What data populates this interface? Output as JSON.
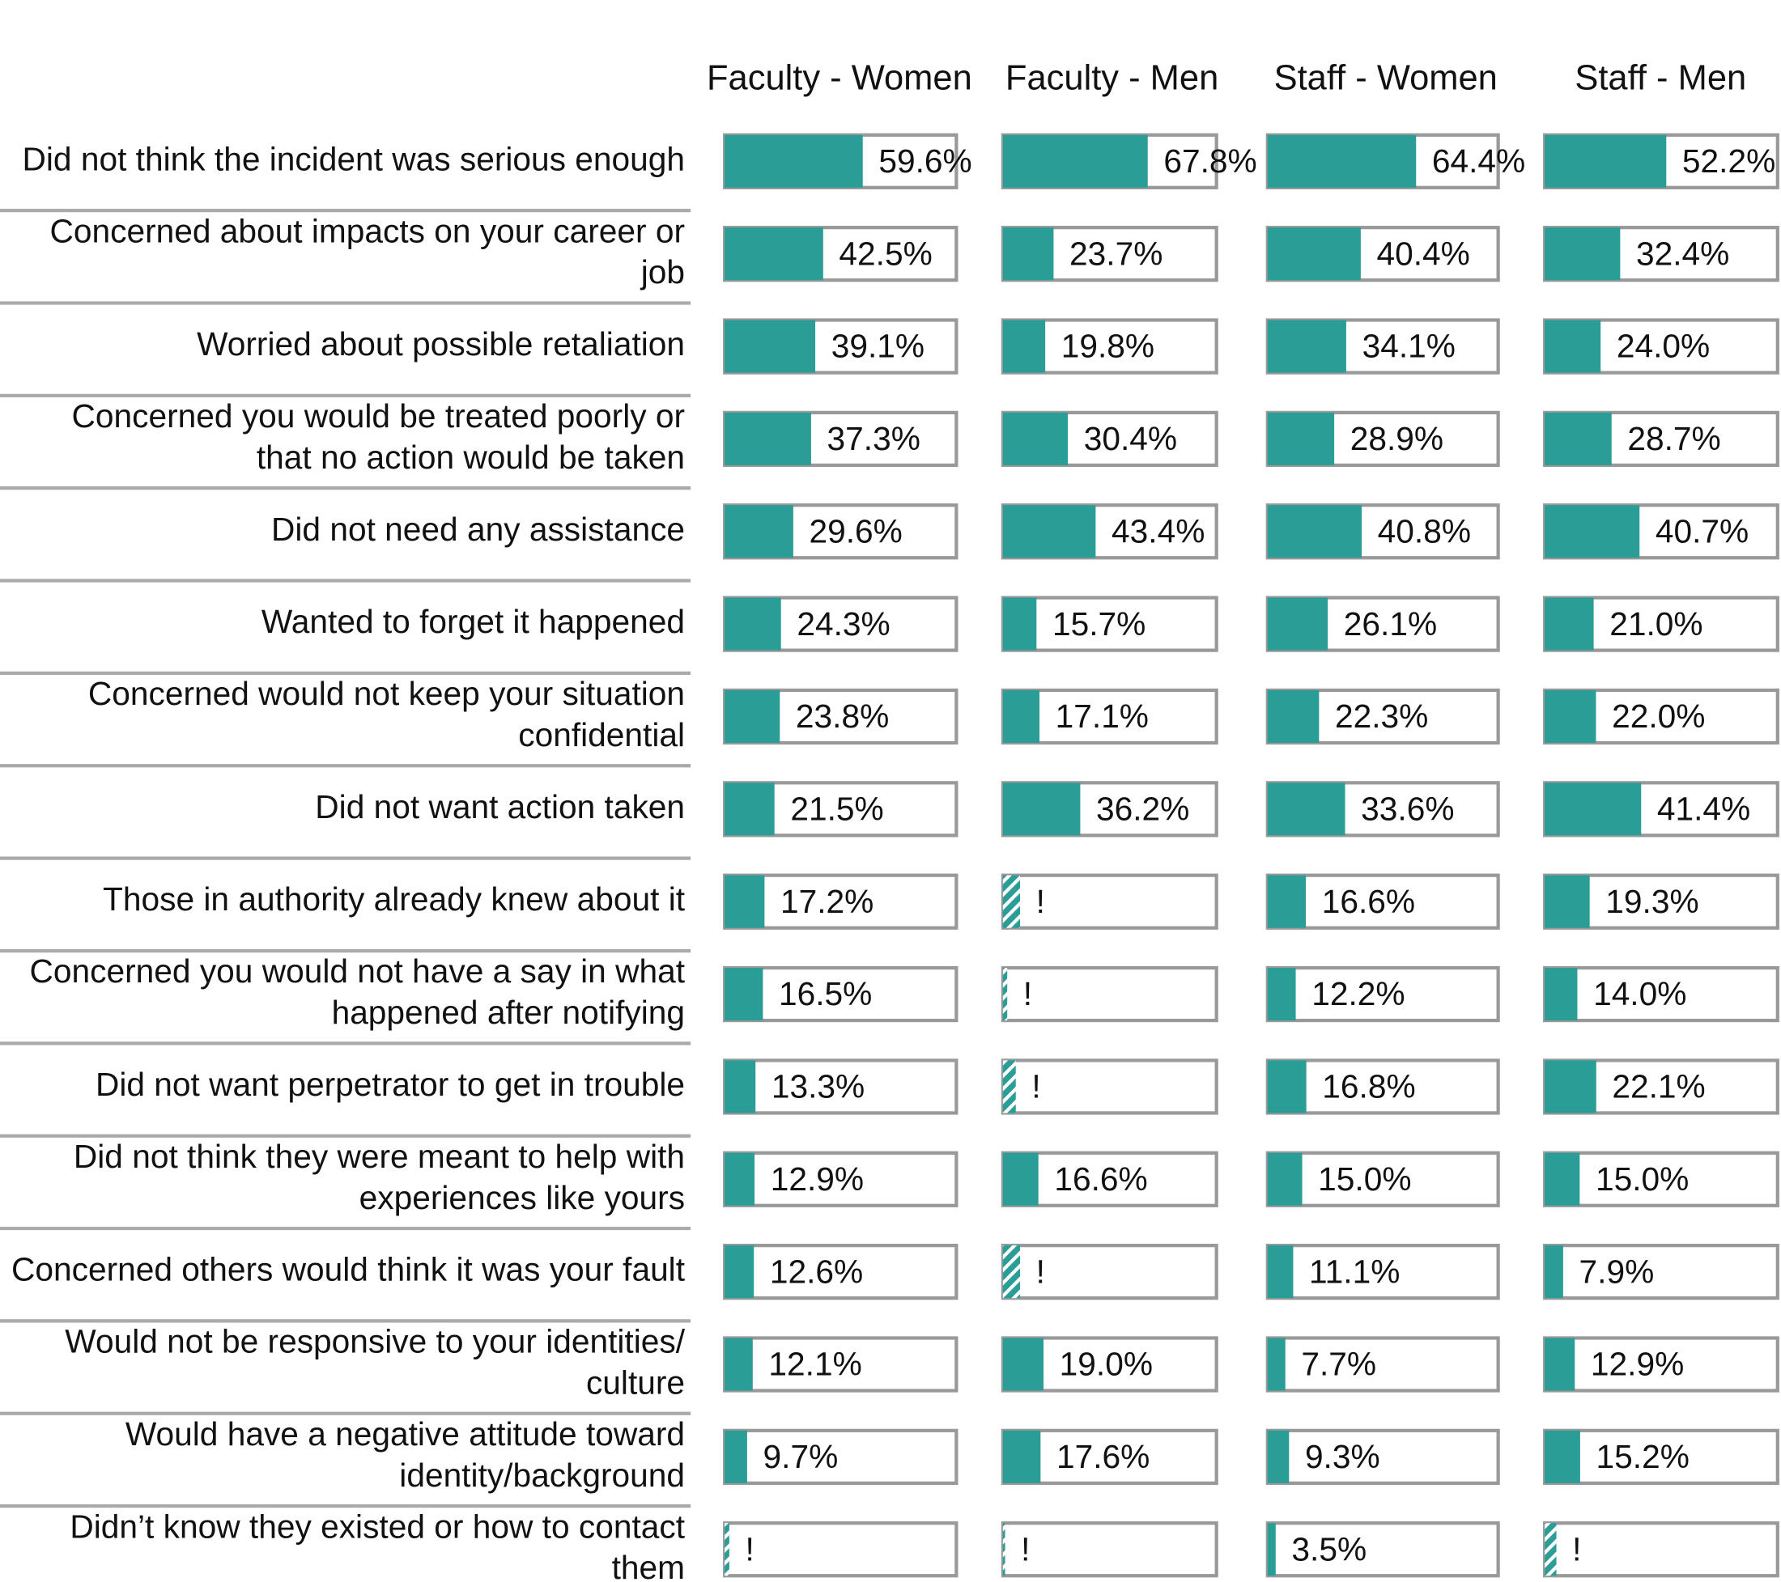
{
  "chart_data": {
    "type": "bar",
    "orientation": "horizontal",
    "xlim": [
      0,
      100
    ],
    "categories": [
      "Did not think the incident was serious enough",
      "Concerned about impacts on your career or job",
      "Worried about possible retaliation",
      "Concerned you would be treated poorly or that no action would be taken",
      "Did not need any assistance",
      "Wanted to forget it happened",
      "Concerned would not keep your situation confidential",
      "Did not want action taken",
      "Those in authority already knew about it",
      "Concerned you would not have a say in what happened after notifying",
      "Did not want perpetrator to get in trouble",
      "Did not think they were meant to help with experiences like yours",
      "Concerned others would think it was your fault",
      "Would not be responsive to your identities/ culture",
      "Would have a negative attitude toward identity/background",
      "Didn’t know they existed or how to contact them"
    ],
    "series": [
      {
        "name": "Faculty - Women",
        "color": "#2a9d96",
        "values": [
          59.6,
          42.5,
          39.1,
          37.3,
          29.6,
          24.3,
          23.8,
          21.5,
          17.2,
          16.5,
          13.3,
          12.9,
          12.6,
          12.1,
          9.7,
          2
        ],
        "value_labels": [
          "59.6%",
          "42.5%",
          "39.1%",
          "37.3%",
          "29.6%",
          "24.3%",
          "23.8%",
          "21.5%",
          "17.2%",
          "16.5%",
          "13.3%",
          "12.9%",
          "12.6%",
          "12.1%",
          "9.7%",
          "!"
        ]
      },
      {
        "name": "Faculty - Men",
        "color": "#2a9d96",
        "values": [
          67.8,
          23.7,
          19.8,
          30.4,
          43.4,
          15.7,
          17.1,
          36.2,
          8,
          2,
          6,
          16.6,
          8,
          19.0,
          17.6,
          1
        ],
        "value_labels": [
          "67.8%",
          "23.7%",
          "19.8%",
          "30.4%",
          "43.4%",
          "15.7%",
          "17.1%",
          "36.2%",
          "!",
          "!",
          "!",
          "16.6%",
          "!",
          "19.0%",
          "17.6%",
          "!"
        ]
      },
      {
        "name": "Staff - Women",
        "color": "#2a9d96",
        "values": [
          64.4,
          40.4,
          34.1,
          28.9,
          40.8,
          26.1,
          22.3,
          33.6,
          16.6,
          12.2,
          16.8,
          15.0,
          11.1,
          7.7,
          9.3,
          3.5
        ],
        "value_labels": [
          "64.4%",
          "40.4%",
          "34.1%",
          "28.9%",
          "40.8%",
          "26.1%",
          "22.3%",
          "33.6%",
          "16.6%",
          "12.2%",
          "16.8%",
          "15.0%",
          "11.1%",
          "7.7%",
          "9.3%",
          "3.5%"
        ]
      },
      {
        "name": "Staff - Men",
        "color": "#2a9d96",
        "values": [
          52.2,
          32.4,
          24.0,
          28.7,
          40.7,
          21.0,
          22.0,
          41.4,
          19.3,
          14.0,
          22.1,
          15.0,
          7.9,
          12.9,
          15.2,
          5
        ],
        "value_labels": [
          "52.2%",
          "32.4%",
          "24.0%",
          "28.7%",
          "40.7%",
          "21.0%",
          "22.0%",
          "41.4%",
          "19.3%",
          "14.0%",
          "22.1%",
          "15.0%",
          "7.9%",
          "12.9%",
          "15.2%",
          "!"
        ]
      }
    ]
  }
}
